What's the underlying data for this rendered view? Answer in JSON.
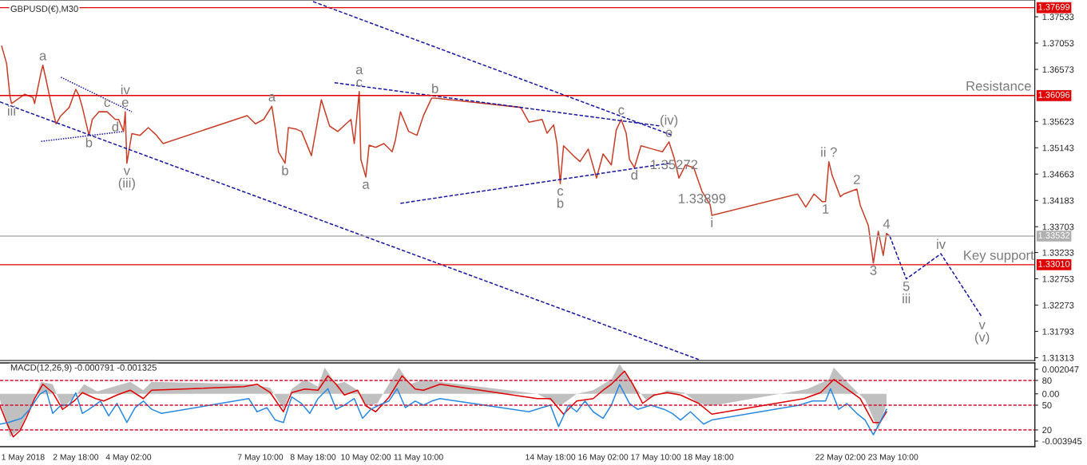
{
  "chart_data": [
    {
      "type": "line",
      "title": "GBPUSD(€),M30",
      "xlim": [
        "2018-04-30T20:00",
        "2018-05-27T00:00"
      ],
      "ylim": [
        1.31262,
        1.37839
      ],
      "yticks": [
        1.37533,
        1.37053,
        1.36573,
        1.35623,
        1.35143,
        1.34663,
        1.34183,
        1.33703,
        1.33233,
        1.32753,
        1.32273,
        1.31793,
        1.31313
      ],
      "tick_labels": "y",
      "grid": false,
      "legend": false,
      "series": [
        {
          "color": "#c8402a",
          "x": [
            "2018-04-30T21:00",
            "2018-05-01T00:00",
            "2018-05-01T02:00",
            "2018-05-01T03:00",
            "2018-05-01T11:00",
            "2018-05-01T16:00",
            "2018-05-01T17:00",
            "2018-05-01T21:00",
            "2018-05-01T22:00",
            "2018-05-02T00:00",
            "2018-05-02T03:00",
            "2018-05-02T06:00",
            "2018-05-02T09:00",
            "2018-05-02T14:00",
            "2018-05-02T18:00",
            "2018-05-02T20:00",
            "2018-05-02T22:00",
            "2018-05-03T02:00",
            "2018-05-03T04:00",
            "2018-05-03T08:00",
            "2018-05-03T13:00",
            "2018-05-03T18:00",
            "2018-05-03T20:00",
            "2018-05-03T23:00",
            "2018-05-04T00:00",
            "2018-05-04T01:00",
            "2018-05-04T04:00",
            "2018-05-04T09:00",
            "2018-05-04T14:00",
            "2018-05-04T19:00",
            "2018-05-04T23:00",
            "2018-05-07T02:00",
            "2018-05-07T07:00",
            "2018-05-07T12:00",
            "2018-05-07T17:00",
            "2018-05-07T19:00",
            "2018-05-07T21:00",
            "2018-05-08T01:00",
            "2018-05-08T03:00",
            "2018-05-08T08:00",
            "2018-05-08T11:00",
            "2018-05-08T17:00",
            "2018-05-08T23:00",
            "2018-05-09T04:00",
            "2018-05-09T09:00",
            "2018-05-09T14:00",
            "2018-05-09T17:00",
            "2018-05-09T19:00",
            "2018-05-09T22:00",
            "2018-05-09T23:00",
            "2018-05-10T02:00",
            "2018-05-10T04:00",
            "2018-05-10T08:00",
            "2018-05-10T13:00",
            "2018-05-10T18:00",
            "2018-05-10T20:00",
            "2018-05-10T23:00",
            "2018-05-11T04:00",
            "2018-05-11T09:00",
            "2018-05-11T13:00",
            "2018-05-11T18:00",
            "2018-05-11T20:00",
            "2018-05-14T00:00",
            "2018-05-14T05:00",
            "2018-05-14T13:00",
            "2018-05-14T16:00",
            "2018-05-14T20:00",
            "2018-05-14T22:00",
            "2018-05-15T00:00",
            "2018-05-15T02:00",
            "2018-05-15T09:00",
            "2018-05-15T12:00",
            "2018-05-15T17:00",
            "2018-05-15T22:00",
            "2018-05-16T02:00",
            "2018-05-16T07:00",
            "2018-05-16T10:00",
            "2018-05-16T13:00",
            "2018-05-16T16:00",
            "2018-05-16T18:00",
            "2018-05-16T21:00",
            "2018-05-17T01:00",
            "2018-05-17T08:00",
            "2018-05-17T14:00",
            "2018-05-17T18:00",
            "2018-05-17T21:00",
            "2018-05-18T00:00",
            "2018-05-18T04:00",
            "2018-05-18T09:00",
            "2018-05-18T14:00",
            "2018-05-18T19:00",
            "2018-05-18T20:00",
            "2018-05-21T00:00",
            "2018-05-21T05:00",
            "2018-05-21T10:00",
            "2018-05-21T15:00",
            "2018-05-21T17:00",
            "2018-05-21T19:00",
            "2018-05-21T21:00",
            "2018-05-22T02:00",
            "2018-05-22T04:00",
            "2018-05-22T12:00",
            "2018-05-22T14:00",
            "2018-05-22T19:00",
            "2018-05-22T22:00",
            "2018-05-23T01:00",
            "2018-05-23T04:00",
            "2018-05-23T06:00",
            "2018-05-23T08:00"
          ],
          "values": [
            1.37,
            1.3668,
            1.3609,
            1.3595,
            1.3612,
            1.3606,
            1.3595,
            1.3653,
            1.3665,
            1.3638,
            1.3595,
            1.3558,
            1.3573,
            1.3588,
            1.3621,
            1.3609,
            1.3588,
            1.3537,
            1.3566,
            1.358,
            1.358,
            1.3566,
            1.3566,
            1.3544,
            1.358,
            1.3486,
            1.354,
            1.3537,
            1.3551,
            1.3537,
            1.3522,
            1.3573,
            1.3558,
            1.3566,
            1.359,
            1.3551,
            1.3507,
            1.3486,
            1.3551,
            1.3548,
            1.3544,
            1.35,
            1.3602,
            1.3554,
            1.3544,
            1.3558,
            1.3566,
            1.3522,
            1.3617,
            1.3493,
            1.3461,
            1.3519,
            1.3515,
            1.3522,
            1.3507,
            1.3529,
            1.358,
            1.3544,
            1.3537,
            1.3573,
            1.3605,
            1.3605,
            1.3588,
            1.3561,
            1.3566,
            1.3541,
            1.3556,
            1.3522,
            1.3449,
            1.3518,
            1.3497,
            1.3489,
            1.3512,
            1.3459,
            1.3503,
            1.3483,
            1.3547,
            1.3566,
            1.3541,
            1.3493,
            1.3478,
            1.3518,
            1.3512,
            1.3507,
            1.3525,
            1.3497,
            1.3459,
            1.3483,
            1.3478,
            1.3435,
            1.341,
            1.3391,
            1.343,
            1.3406,
            1.343,
            1.3416,
            1.3416,
            1.3489,
            1.3464,
            1.3425,
            1.343,
            1.3439,
            1.341,
            1.3372,
            1.3304,
            1.3362,
            1.3318,
            1.3358,
            1.3353
          ]
        },
        {
          "color": "#1a1aa0",
          "line_style": "dashed",
          "x": [
            "2018-05-23T08:00",
            "2018-05-23T18:00",
            "2018-05-24T15:00",
            "2018-05-25T16:00"
          ],
          "values": [
            1.3353,
            1.3275,
            1.3321,
            1.3205
          ]
        },
        {
          "color": "#1a1aa0",
          "line_style": "dashed",
          "x": [
            "2018-05-08T18:00",
            "2018-05-17T20:00"
          ],
          "values": [
            1.3781,
            1.3537
          ]
        },
        {
          "color": "#1a1aa0",
          "line_style": "dashed",
          "x": [
            "2018-04-30T20:00",
            "2018-05-18T12:00"
          ],
          "values": [
            1.3598,
            1.3128
          ]
        },
        {
          "color": "#1a1aa0",
          "line_style": "dashed",
          "x": [
            "2018-05-09T07:00",
            "2018-05-17T13:00"
          ],
          "values": [
            1.3633,
            1.3554
          ]
        },
        {
          "color": "#1a1aa0",
          "line_style": "dashed",
          "x": [
            "2018-05-10T23:00",
            "2018-05-17T18:00"
          ],
          "values": [
            1.3413,
            1.3486
          ]
        },
        {
          "color": "#1a1aa0",
          "line_style": "dotted",
          "x": [
            "2018-05-02T09:00",
            "2018-05-04T04:00"
          ],
          "values": [
            1.3643,
            1.358
          ]
        },
        {
          "color": "#1a1aa0",
          "line_style": "dotted",
          "x": [
            "2018-05-01T21:00",
            "2018-05-03T23:00"
          ],
          "values": [
            1.3526,
            1.3544
          ]
        }
      ],
      "ref_lines": [
        {
          "axis": "y",
          "value": 1.37699,
          "label": "1.37699",
          "color": "#e00000"
        },
        {
          "axis": "y",
          "value": 1.36096,
          "label": "1.36096",
          "color": "#e00000"
        },
        {
          "axis": "y",
          "value": 1.33532,
          "label": "1.33532",
          "color": "#b0b0b0"
        },
        {
          "axis": "y",
          "value": 1.3301,
          "label": "1.33010",
          "color": "#e00000"
        }
      ],
      "annotations": [
        {
          "text": "1.35272",
          "x": "2018-05-17T21:00",
          "y": 1.3497
        },
        {
          "text": "a",
          "x": "2018-05-01T22:00",
          "y": 1.3665
        },
        {
          "text": "iii",
          "x": "2018-05-01T03:00",
          "y": 1.3595
        },
        {
          "text": "b",
          "x": "2018-05-03T02:00",
          "y": 1.3537
        },
        {
          "text": "c",
          "x": "2018-05-03T13:00",
          "y": 1.358
        },
        {
          "text": "iv\ne",
          "x": "2018-05-04T00:00",
          "y": 1.358
        },
        {
          "text": "d",
          "x": "2018-05-03T18:00",
          "y": 1.3566
        },
        {
          "text": "v\n(iii)",
          "x": "2018-05-04T01:00",
          "y": 1.3486
        },
        {
          "text": "a",
          "x": "2018-05-07T17:00",
          "y": 1.359
        },
        {
          "text": "b",
          "x": "2018-05-08T01:00",
          "y": 1.3486
        },
        {
          "text": "a\nc",
          "x": "2018-05-09T22:00",
          "y": 1.3617
        },
        {
          "text": "a",
          "x": "2018-05-10T02:00",
          "y": 1.3461
        },
        {
          "text": "b",
          "x": "2018-05-11T20:00",
          "y": 1.3605
        },
        {
          "text": "c\nb",
          "x": "2018-05-15T00:00",
          "y": 1.3449
        },
        {
          "text": "c",
          "x": "2018-05-16T13:00",
          "y": 1.3566
        },
        {
          "text": "d",
          "x": "2018-05-16T21:00",
          "y": 1.3478
        },
        {
          "text": "(iv)\ne",
          "x": "2018-05-17T18:00",
          "y": 1.3525
        },
        {
          "text": "ii ?",
          "x": "2018-05-21T19:00",
          "y": 1.3489
        },
        {
          "text": "2",
          "x": "2018-05-22T12:00",
          "y": 1.3439
        },
        {
          "text": "1",
          "x": "2018-05-21T17:00",
          "y": 1.3416
        },
        {
          "text": "i",
          "x": "2018-05-18T20:00",
          "y": 1.3391
        },
        {
          "text": "1.33899",
          "x": "2018-05-18T14:00",
          "y": 1.3435
        },
        {
          "text": "4",
          "x": "2018-05-23T06:00",
          "y": 1.3358
        },
        {
          "text": "3",
          "x": "2018-05-22T22:00",
          "y": 1.3304
        },
        {
          "text": "5\niii",
          "x": "2018-05-23T18:00",
          "y": 1.3275
        },
        {
          "text": "iv",
          "x": "2018-05-24T15:00",
          "y": 1.3321
        },
        {
          "text": "v\n(v)",
          "x": "2018-05-25T16:00",
          "y": 1.3205
        },
        {
          "text": "Resistance",
          "x": "2018-05-26T02:00",
          "y": 1.36096
        },
        {
          "text": "Key support",
          "x": "2018-05-26T02:00",
          "y": 1.3301
        }
      ]
    },
    {
      "type": "line",
      "title": "MACD(12,26,9) -0.000791 -0.001325",
      "xlim": [
        "2018-04-30T20:00",
        "2018-05-27T00:00"
      ],
      "ylim": [
        -0.00441,
        0.00258
      ],
      "yticks": [
        0.002047,
        {
          "value": 0,
          "label": "0.00"
        },
        -0.003945
      ],
      "y2lim": [
        -0.3,
        101.3
      ],
      "y2ticks": [
        80,
        50,
        20
      ],
      "grid": false,
      "legend": false,
      "xticks": [
        {
          "value": "2018-05-01T10:00",
          "label": "1 May 2018"
        },
        {
          "value": "2018-05-02T18:00",
          "label": "2 May 18:00"
        },
        {
          "value": "2018-05-04T02:00",
          "label": "4 May 02:00"
        },
        {
          "value": "2018-05-07T10:00",
          "label": "7 May 10:00"
        },
        {
          "value": "2018-05-08T18:00",
          "label": "8 May 18:00"
        },
        {
          "value": "2018-05-10T02:00",
          "label": "10 May 02:00"
        },
        {
          "value": "2018-05-11T10:00",
          "label": "11 May 10:00"
        },
        {
          "value": "2018-05-14T18:00",
          "label": "14 May 18:00"
        },
        {
          "value": "2018-05-16T02:00",
          "label": "16 May 02:00"
        },
        {
          "value": "2018-05-17T10:00",
          "label": "17 May 10:00"
        },
        {
          "value": "2018-05-18T18:00",
          "label": "18 May 18:00"
        },
        {
          "value": "2018-05-22T02:00",
          "label": "22 May 02:00"
        },
        {
          "value": "2018-05-23T10:00",
          "label": "23 May 10:00"
        }
      ],
      "series": [
        {
          "type": "area",
          "color": "#c0c0c0",
          "x": [
            "2018-04-30T20:00",
            "2018-05-01T02:00",
            "2018-05-01T08:00",
            "2018-05-01T15:00",
            "2018-05-01T21:00",
            "2018-05-02T04:00",
            "2018-05-02T10:00",
            "2018-05-02T17:00",
            "2018-05-02T23:00",
            "2018-05-03T07:00",
            "2018-05-03T17:00",
            "2018-05-04T03:00",
            "2018-05-04T11:00",
            "2018-05-04T16:00",
            "2018-05-07T04:00",
            "2018-05-07T16:00",
            "2018-05-08T00:00",
            "2018-05-08T05:00",
            "2018-05-08T13:00",
            "2018-05-08T21:00",
            "2018-05-09T01:00",
            "2018-05-09T08:00",
            "2018-05-09T13:00",
            "2018-05-09T21:00",
            "2018-05-10T02:00",
            "2018-05-10T09:00",
            "2018-05-10T22:00",
            "2018-05-11T05:00",
            "2018-05-11T13:00",
            "2018-05-11T23:00",
            "2018-05-14T10:00",
            "2018-05-15T00:00",
            "2018-05-15T10:00",
            "2018-05-15T20:00",
            "2018-05-16T07:00",
            "2018-05-16T12:00",
            "2018-05-16T20:00",
            "2018-05-17T04:00",
            "2018-05-17T17:00",
            "2018-05-18T03:00",
            "2018-05-18T12:00",
            "2018-05-18T20:00",
            "2018-05-21T06:00",
            "2018-05-21T19:00",
            "2018-05-21T22:00",
            "2018-05-22T06:00",
            "2018-05-22T17:00",
            "2018-05-23T01:00",
            "2018-05-23T06:00"
          ],
          "values": [
            -0.0005,
            -0.0036,
            -0.003,
            -0.001,
            0.001,
            0.0008,
            -0.0012,
            -0.0003,
            0.0008,
            0.0002,
            0.0006,
            0.001,
            0.0003,
            0.001,
            0.0008,
            0.0005,
            -0.0013,
            0.0004,
            0.0012,
            0.0006,
            0.0022,
            0.0008,
            0.001,
            0.0003,
            -0.001,
            -0.0008,
            0.0022,
            0.0008,
            0.0012,
            0.001,
            0.0,
            -0.001,
            0.0,
            0.0003,
            0.0012,
            0.0025,
            0.0008,
            -0.0005,
            0.0003,
            0.0001,
            -0.0008,
            -0.001,
            0.0004,
            0.0012,
            0.0022,
            0.001,
            -0.0005,
            -0.003,
            -0.0008
          ]
        },
        {
          "color": "#e00000",
          "x": [
            "2018-04-30T20:00",
            "2018-05-01T00:00",
            "2018-05-01T04:00",
            "2018-05-01T08:00",
            "2018-05-01T12:00",
            "2018-05-01T17:00",
            "2018-05-01T22:00",
            "2018-05-02T04:00",
            "2018-05-02T10:00",
            "2018-05-02T17:00",
            "2018-05-02T22:00",
            "2018-05-03T06:00",
            "2018-05-03T11:00",
            "2018-05-03T19:00",
            "2018-05-04T03:00",
            "2018-05-04T11:00",
            "2018-05-04T16:00",
            "2018-05-07T00:00",
            "2018-05-07T08:00",
            "2018-05-07T16:00",
            "2018-05-08T00:00",
            "2018-05-08T05:00",
            "2018-05-08T13:00",
            "2018-05-08T21:00",
            "2018-05-09T03:00",
            "2018-05-09T08:00",
            "2018-05-09T13:00",
            "2018-05-09T21:00",
            "2018-05-10T02:00",
            "2018-05-10T08:00",
            "2018-05-10T16:00",
            "2018-05-11T00:00",
            "2018-05-11T08:00",
            "2018-05-11T13:00",
            "2018-05-11T23:00",
            "2018-05-14T10:00",
            "2018-05-14T18:00",
            "2018-05-15T02:00",
            "2018-05-15T10:00",
            "2018-05-15T20:00",
            "2018-05-16T02:00",
            "2018-05-16T07:00",
            "2018-05-16T15:00",
            "2018-05-16T20:00",
            "2018-05-17T02:00",
            "2018-05-17T09:00",
            "2018-05-17T17:00",
            "2018-05-18T01:00",
            "2018-05-18T12:00",
            "2018-05-18T20:00",
            "2018-05-21T04:00",
            "2018-05-21T14:00",
            "2018-05-21T22:00",
            "2018-05-22T06:00",
            "2018-05-22T14:00",
            "2018-05-22T22:00",
            "2018-05-23T02:00",
            "2018-05-23T06:00"
          ],
          "values": [
            -0.001,
            -0.0024,
            -0.0036,
            -0.0031,
            -0.002,
            -0.0004,
            0.0008,
            0.0001,
            -0.0013,
            -0.0006,
            0.0001,
            -0.0004,
            -0.0006,
            -0.0001,
            0.0003,
            -0.0004,
            0.0003,
            0.0006,
            0.0008,
            0.0001,
            -0.0015,
            0.0001,
            0.0004,
            0.0003,
            0.0015,
            0.0008,
            -0.0001,
            0.0003,
            -0.001,
            -0.0015,
            -0.0003,
            0.0015,
            0.0004,
            0.0003,
            0.0008,
            -0.0004,
            -0.0004,
            -0.0017,
            -0.0006,
            -0.0004,
            0.0003,
            0.0008,
            0.0019,
            0.0008,
            -0.0008,
            -0.0001,
            0.0001,
            -0.0001,
            -0.0008,
            -0.0017,
            -0.0004,
            0.0001,
            0.0012,
            0.0004,
            -0.0004,
            -0.0024,
            -0.0024,
            -0.0015
          ]
        },
        {
          "color": "#2a8ae0",
          "axis": "y2",
          "x": [
            "2018-04-30T20:00",
            "2018-05-01T01:00",
            "2018-05-01T09:00",
            "2018-05-01T14:00",
            "2018-05-01T20:00",
            "2018-05-02T00:00",
            "2018-05-02T04:00",
            "2018-05-02T09:00",
            "2018-05-02T14:00",
            "2018-05-02T18:00",
            "2018-05-02T22:00",
            "2018-05-03T02:00",
            "2018-05-03T09:00",
            "2018-05-03T14:00",
            "2018-05-03T19:00",
            "2018-05-04T01:00",
            "2018-05-04T06:00",
            "2018-05-04T11:00",
            "2018-05-04T16:00",
            "2018-05-04T22:00",
            "2018-05-07T03:00",
            "2018-05-07T08:00",
            "2018-05-07T14:00",
            "2018-05-07T19:00",
            "2018-05-08T00:00",
            "2018-05-08T05:00",
            "2018-05-08T11:00",
            "2018-05-08T16:00",
            "2018-05-08T21:00",
            "2018-05-09T03:00",
            "2018-05-09T08:00",
            "2018-05-09T13:00",
            "2018-05-09T19:00",
            "2018-05-10T00:00",
            "2018-05-10T05:00",
            "2018-05-10T10:00",
            "2018-05-10T16:00",
            "2018-05-10T21:00",
            "2018-05-11T02:00",
            "2018-05-11T08:00",
            "2018-05-11T13:00",
            "2018-05-11T18:00",
            "2018-05-11T23:00",
            "2018-05-14T05:00",
            "2018-05-14T13:00",
            "2018-05-14T18:00",
            "2018-05-14T23:00",
            "2018-05-15T05:00",
            "2018-05-15T10:00",
            "2018-05-15T15:00",
            "2018-05-15T20:00",
            "2018-05-16T02:00",
            "2018-05-16T07:00",
            "2018-05-16T12:00",
            "2018-05-16T18:00",
            "2018-05-16T23:00",
            "2018-05-17T07:00",
            "2018-05-17T15:00",
            "2018-05-17T20:00",
            "2018-05-18T01:00",
            "2018-05-18T07:00",
            "2018-05-18T15:00",
            "2018-05-18T20:00",
            "2018-05-21T01:00",
            "2018-05-21T09:00",
            "2018-05-21T17:00",
            "2018-05-21T20:00",
            "2018-05-22T01:00",
            "2018-05-22T06:00",
            "2018-05-22T12:00",
            "2018-05-22T17:00",
            "2018-05-22T22:00",
            "2018-05-23T02:00",
            "2018-05-23T06:00"
          ],
          "values": [
            27,
            29,
            34,
            45,
            63,
            68,
            40,
            50,
            50,
            65,
            40,
            45,
            55,
            37,
            52,
            29,
            47,
            55,
            45,
            40,
            58,
            42,
            47,
            32,
            29,
            60,
            52,
            40,
            58,
            70,
            45,
            50,
            58,
            34,
            45,
            50,
            55,
            70,
            47,
            55,
            50,
            55,
            58,
            42,
            47,
            50,
            24,
            50,
            42,
            55,
            42,
            34,
            50,
            75,
            52,
            45,
            50,
            45,
            40,
            32,
            42,
            27,
            32,
            50,
            55,
            55,
            70,
            45,
            52,
            40,
            32,
            14,
            29,
            45
          ]
        }
      ],
      "ref_lines": [
        {
          "axis": "y2",
          "value": 80,
          "color": "#d01030",
          "line_style": "dashed"
        },
        {
          "axis": "y2",
          "value": 50,
          "color": "#d01030",
          "line_style": "dashed"
        },
        {
          "axis": "y2",
          "value": 20,
          "color": "#d01030",
          "line_style": "dashed"
        }
      ]
    }
  ]
}
